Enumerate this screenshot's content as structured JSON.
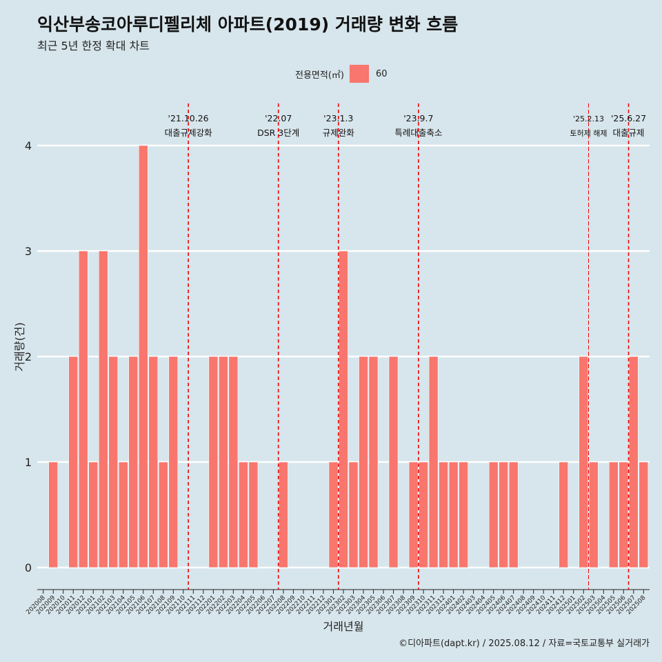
{
  "title": "익산부송코아루디펠리체 아파트(2019) 거래량 변화 흐름",
  "subtitle": "최근 5년 한정 확대 차트",
  "legend": {
    "title": "전용면적(㎡)",
    "label": "60"
  },
  "caption": "©디아파트(dapt.kr) / 2025.08.12 / 자료=국토교통부 실거래가",
  "colors": {
    "bar": "#f8766d",
    "event_line": "#ee0000",
    "background": "#d7e5ec",
    "grid": "#ffffff"
  },
  "chart_data": {
    "type": "bar",
    "xlabel": "거래년월",
    "ylabel": "거래량(건)",
    "ylim": [
      0,
      4
    ],
    "yticks": [
      0,
      1,
      2,
      3,
      4
    ],
    "grid": "horizontal",
    "legend_position": "top",
    "categories": [
      "202008",
      "202009",
      "202010",
      "202011",
      "202012",
      "202101",
      "202102",
      "202103",
      "202104",
      "202105",
      "202106",
      "202107",
      "202108",
      "202109",
      "202110",
      "202111",
      "202112",
      "202201",
      "202202",
      "202203",
      "202204",
      "202205",
      "202206",
      "202207",
      "202208",
      "202209",
      "202210",
      "202211",
      "202212",
      "202301",
      "202302",
      "202303",
      "202304",
      "202305",
      "202306",
      "202307",
      "202308",
      "202309",
      "202310",
      "202311",
      "202312",
      "202401",
      "202402",
      "202403",
      "202404",
      "202405",
      "202406",
      "202407",
      "202408",
      "202409",
      "202410",
      "202411",
      "202412",
      "202501",
      "202502",
      "202503",
      "202504",
      "202505",
      "202506",
      "202507",
      "202508"
    ],
    "series": [
      {
        "name": "60",
        "values": [
          0,
          1,
          0,
          2,
          3,
          1,
          3,
          2,
          1,
          2,
          4,
          2,
          1,
          2,
          0,
          0,
          0,
          2,
          2,
          2,
          1,
          1,
          0,
          0,
          1,
          0,
          0,
          0,
          0,
          1,
          3,
          1,
          2,
          2,
          0,
          2,
          0,
          1,
          1,
          2,
          1,
          1,
          1,
          0,
          0,
          1,
          1,
          1,
          0,
          0,
          0,
          0,
          1,
          0,
          2,
          1,
          0,
          1,
          1,
          2,
          1
        ]
      }
    ],
    "events": [
      {
        "date": "'21.10.26",
        "label": "대출규제강화",
        "after_category": "202110",
        "size": "normal"
      },
      {
        "date": "'22.07",
        "label": "DSR 3단계",
        "after_category": "202207",
        "size": "normal"
      },
      {
        "date": "'23.1.3",
        "label": "규제완화",
        "after_category": "202301",
        "size": "normal"
      },
      {
        "date": "'23.9.7",
        "label": "특례대출축소",
        "after_category": "202309",
        "size": "normal"
      },
      {
        "date": "'25.2.13",
        "label": "토허제 해제",
        "after_category": "202502",
        "size": "small"
      },
      {
        "date": "'25.6.27",
        "label": "대출규제",
        "after_category": "202506",
        "size": "normal"
      }
    ]
  }
}
